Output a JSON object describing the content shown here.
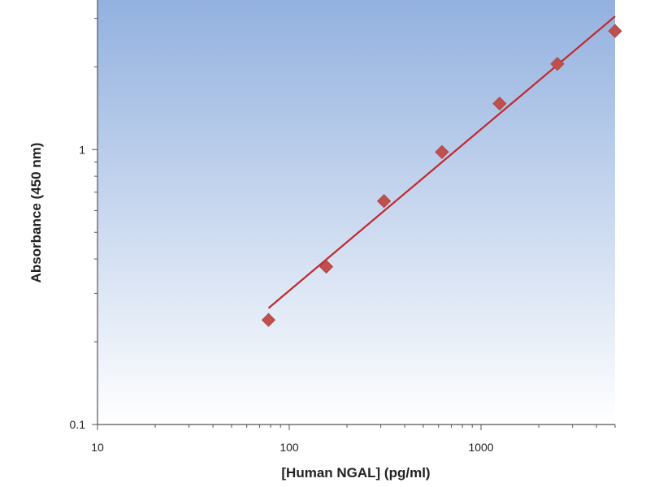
{
  "chart_data": {
    "type": "scatter",
    "title": "",
    "xlabel": "[Human NGAL] (pg/ml)",
    "ylabel": "Absorbance (450 nm)",
    "x_scale": "log",
    "y_scale": "log",
    "xlim": [
      10,
      5000
    ],
    "ylim": [
      0.1,
      3.5
    ],
    "x_ticks": [
      {
        "value": 10,
        "label": "10"
      },
      {
        "value": 100,
        "label": "100"
      },
      {
        "value": 1000,
        "label": "1000"
      }
    ],
    "y_ticks": [
      {
        "value": 0.1,
        "label": "0.1"
      },
      {
        "value": 1,
        "label": "1"
      }
    ],
    "grid": false,
    "legend": "none",
    "plot_background": {
      "top": "#93b1df",
      "bottom": "#ffffff"
    },
    "series": [
      {
        "type": "scatter",
        "marker": "diamond",
        "color": "#c0504d",
        "x": [
          78,
          156,
          312,
          625,
          1250,
          2500,
          5000
        ],
        "y": [
          0.24,
          0.375,
          0.65,
          0.98,
          1.47,
          2.05,
          2.7
        ]
      },
      {
        "type": "line",
        "color": "#c0282e",
        "x": [
          78,
          5000
        ],
        "y": [
          0.265,
          3.05
        ]
      }
    ]
  }
}
